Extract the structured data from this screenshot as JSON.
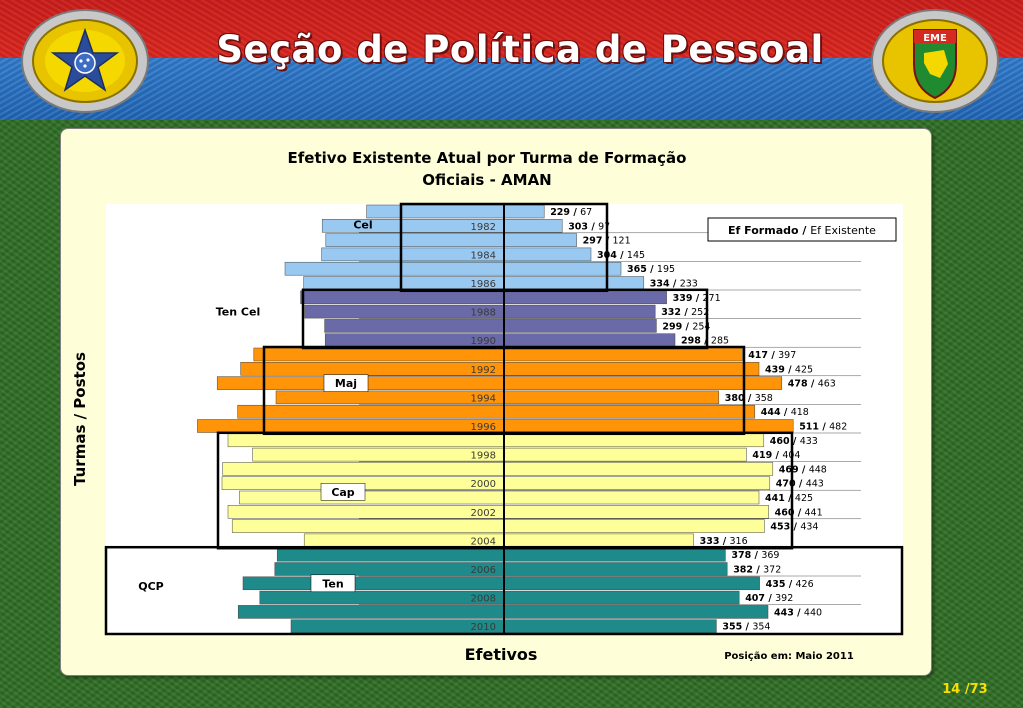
{
  "header": {
    "title": "Seção de Política de Pessoal",
    "left_emblem_icon": "army-star-emblem-icon",
    "right_emblem_icon": "eme-shield-emblem-icon",
    "right_emblem_text": "EME"
  },
  "footer": {
    "page": "14",
    "separator": " /",
    "total": "73"
  },
  "colors": {
    "title_text": "#ffffff",
    "band_red": "#d9261f",
    "band_blue": "#2f79c9",
    "background_green": "#2f6e25",
    "page_number": "#f6e000"
  },
  "chart_data": {
    "type": "bar",
    "orientation": "horizontal",
    "layout": "population-pyramid",
    "title": "Efetivo Existente Atual por Turma de Formação",
    "subtitle": "Oficiais - AMAN",
    "xlabel": "Efetivos",
    "ylabel": "Turmas / Postos",
    "legend": "Ef Formado / Ef Existente",
    "legend_formado": "Ef Formado",
    "legend_sep": " / ",
    "legend_existente": "Ef Existente",
    "legend_position": "top-right",
    "note": "Posição em: Maio 2011",
    "xlim": [
      -511,
      511
    ],
    "grid": false,
    "categories": [
      "1981",
      "1982",
      "1983",
      "1984",
      "1985",
      "1986",
      "1987",
      "1988",
      "1989",
      "1990",
      "1991",
      "1992",
      "1993",
      "1994",
      "1995",
      "1996",
      "1997",
      "1998",
      "1999",
      "2000",
      "2001",
      "2002",
      "2003",
      "2004",
      "2005",
      "2006",
      "2007",
      "2008",
      "2009",
      "2010"
    ],
    "tick_labels": [
      "1982",
      "1984",
      "1986",
      "1988",
      "1990",
      "1992",
      "1994",
      "1996",
      "1998",
      "2000",
      "2002",
      "2004",
      "2006",
      "2008",
      "2010"
    ],
    "series": [
      {
        "name": "Ef Formado",
        "values": [
          229,
          303,
          297,
          304,
          365,
          334,
          339,
          332,
          299,
          298,
          417,
          439,
          478,
          380,
          444,
          511,
          460,
          419,
          469,
          470,
          441,
          460,
          453,
          333,
          378,
          382,
          435,
          407,
          443,
          355
        ]
      },
      {
        "name": "Ef Existente",
        "values": [
          67,
          97,
          121,
          145,
          195,
          233,
          271,
          252,
          254,
          285,
          397,
          425,
          463,
          358,
          418,
          482,
          433,
          404,
          448,
          443,
          425,
          441,
          434,
          316,
          369,
          372,
          426,
          392,
          440,
          354
        ]
      }
    ],
    "groups": [
      {
        "label": "Cel",
        "from": "1981",
        "to": "1986",
        "color": "#99c8f0"
      },
      {
        "label": "Ten Cel",
        "from": "1987",
        "to": "1990",
        "color": "#6a6aa8"
      },
      {
        "label": "Maj",
        "from": "1991",
        "to": "1996",
        "color": "#ff9409"
      },
      {
        "label": "Cap",
        "from": "1997",
        "to": "2004",
        "color": "#ffff99"
      },
      {
        "label": "Ten",
        "from": "2005",
        "to": "2010",
        "color": "#1e8a8a"
      },
      {
        "label": "QCP",
        "from": "2005",
        "to": "2010",
        "color": "#1e8a8a"
      }
    ]
  }
}
